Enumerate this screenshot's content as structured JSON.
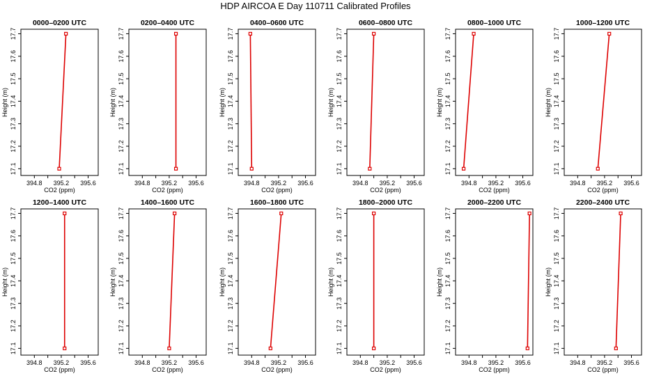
{
  "title": "HDP AIRCOA E  Day 110711  Calibrated Profiles",
  "chart_data": {
    "type": "line",
    "xlabel": "CO2 (ppm)",
    "ylabel": "Height (m)",
    "xlim": [
      394.6,
      395.75
    ],
    "ylim": [
      17.07,
      17.72
    ],
    "xticks": [
      394.8,
      395.0,
      395.2,
      395.4,
      395.6
    ],
    "xtick_labels": [
      "394.8",
      "",
      "395.2",
      "",
      "395.6"
    ],
    "yticks": [
      "17.1",
      "17.2",
      "17.3",
      "17.4",
      "17.5",
      "17.6",
      "17.7"
    ],
    "colors": {
      "line": "#dd0000",
      "marker": "#dd0000",
      "frame": "#000000"
    },
    "panels": [
      {
        "title": "0000–0200 UTC",
        "points": [
          {
            "co2": 395.17,
            "height": 17.1
          },
          {
            "co2": 395.27,
            "height": 17.7
          }
        ]
      },
      {
        "title": "0200–0400 UTC",
        "points": [
          {
            "co2": 395.3,
            "height": 17.1
          },
          {
            "co2": 395.3,
            "height": 17.7
          }
        ]
      },
      {
        "title": "0400–0600 UTC",
        "points": [
          {
            "co2": 394.8,
            "height": 17.1
          },
          {
            "co2": 394.78,
            "height": 17.7
          }
        ]
      },
      {
        "title": "0600–0800 UTC",
        "points": [
          {
            "co2": 394.94,
            "height": 17.1
          },
          {
            "co2": 395.0,
            "height": 17.7
          }
        ]
      },
      {
        "title": "0800–1000 UTC",
        "points": [
          {
            "co2": 394.72,
            "height": 17.1
          },
          {
            "co2": 394.87,
            "height": 17.7
          }
        ]
      },
      {
        "title": "1000–1200 UTC",
        "points": [
          {
            "co2": 395.1,
            "height": 17.1
          },
          {
            "co2": 395.27,
            "height": 17.7
          }
        ]
      },
      {
        "title": "1200–1400 UTC",
        "points": [
          {
            "co2": 395.25,
            "height": 17.1
          },
          {
            "co2": 395.25,
            "height": 17.7
          }
        ]
      },
      {
        "title": "1400–1600 UTC",
        "points": [
          {
            "co2": 395.2,
            "height": 17.1
          },
          {
            "co2": 395.28,
            "height": 17.7
          }
        ]
      },
      {
        "title": "1600–1800 UTC",
        "points": [
          {
            "co2": 395.08,
            "height": 17.1
          },
          {
            "co2": 395.24,
            "height": 17.7
          }
        ]
      },
      {
        "title": "1800–2000 UTC",
        "points": [
          {
            "co2": 395.0,
            "height": 17.1
          },
          {
            "co2": 395.0,
            "height": 17.7
          }
        ]
      },
      {
        "title": "2000–2200 UTC",
        "points": [
          {
            "co2": 395.67,
            "height": 17.1
          },
          {
            "co2": 395.7,
            "height": 17.7
          }
        ]
      },
      {
        "title": "2200–2400 UTC",
        "points": [
          {
            "co2": 395.37,
            "height": 17.1
          },
          {
            "co2": 395.44,
            "height": 17.7
          }
        ]
      }
    ]
  }
}
